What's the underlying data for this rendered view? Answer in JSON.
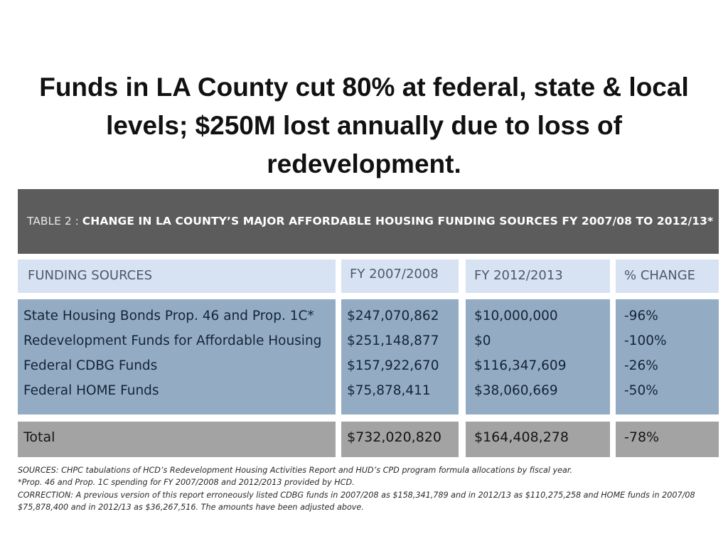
{
  "slide": {
    "title": "Funds in LA County cut 80% at federal, state & local levels; $250M lost annually due to loss of redevelopment."
  },
  "table": {
    "label": "TABLE 2 : ",
    "caption": "CHANGE IN LA COUNTY’S MAJOR AFFORDABLE HOUSING FUNDING SOURCES FY 2007/08 TO 2012/13*",
    "columns": [
      "FUNDING SOURCES",
      "FY 2007/2008",
      "FY 2012/2013",
      "% CHANGE"
    ],
    "rows": [
      {
        "source": "State Housing Bonds Prop. 46 and Prop. 1C*",
        "fy0708": "$247,070,862",
        "fy1213": "$10,000,000",
        "change": "-96%"
      },
      {
        "source": "Redevelopment Funds for Affordable Housing",
        "fy0708": "$251,148,877",
        "fy1213": "$0",
        "change": "-100%"
      },
      {
        "source": "Federal CDBG Funds",
        "fy0708": "$157,922,670",
        "fy1213": "$116,347,609",
        "change": "-26%"
      },
      {
        "source": "Federal HOME Funds",
        "fy0708": "$75,878,411",
        "fy1213": "$38,060,669",
        "change": "-50%"
      }
    ],
    "total": {
      "label": "Total",
      "fy0708": "$732,020,820",
      "fy1213": "$164,408,278",
      "change": "-78%"
    }
  },
  "notes": [
    "SOURCES: CHPC tabulations of HCD’s Redevelopment Housing Activities Report and HUD’s CPD program formula allocations by fiscal year.",
    "*Prop. 46 and Prop. 1C spending for FY 2007/2008 and 2012/2013 provided by HCD.",
    "CORRECTION: A previous version of this report erroneously listed CDBG funds in 2007/208 as $158,341,789 and in 2012/13 as $110,275,258 and HOME funds in 2007/08",
    "$75,878,400 and in 2012/13 as $36,267,516. The amounts have been adjusted above."
  ]
}
